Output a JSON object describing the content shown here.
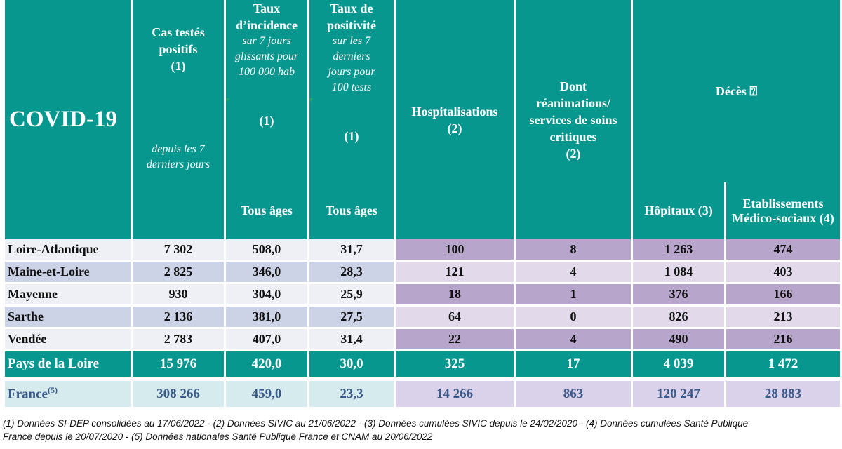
{
  "header": {
    "title": "COVID-19",
    "cas": {
      "label": "Cas testés positifs",
      "ref": "(1)",
      "note": "depuis les 7 derniers jours"
    },
    "incidence": {
      "label": "Taux d’incidence",
      "note": "sur 7 jours glissants pour 100 000 hab",
      "ref": "(1)",
      "sub": "Tous âges"
    },
    "positivite": {
      "label": "Taux de positivité",
      "note": "sur les 7 derniers jours pour 100 tests",
      "ref": "(1)",
      "sub": "Tous âges"
    },
    "hospit": {
      "label": "Hospitalisations",
      "ref": "(2)"
    },
    "rea": {
      "label": "Dont réanimations/ services de soins critiques",
      "ref": "(2)"
    },
    "deces": {
      "label": "Décès ⍰",
      "hopitaux": "Hôpitaux",
      "hopitaux_ref": "(3)",
      "ems": "Etablissements Médico-sociaux",
      "ems_ref": "(4)"
    }
  },
  "rows": [
    {
      "name": "Loire-Atlantique",
      "cas": "7 302",
      "incidence": "508,0",
      "positivite": "31,7",
      "hospit": "100",
      "rea": "8",
      "hop": "1 263",
      "ems": "474"
    },
    {
      "name": "Maine-et-Loire",
      "cas": "2 825",
      "incidence": "346,0",
      "positivite": "28,3",
      "hospit": "121",
      "rea": "4",
      "hop": "1 084",
      "ems": "403"
    },
    {
      "name": "Mayenne",
      "cas": "930",
      "incidence": "304,0",
      "positivite": "25,9",
      "hospit": "18",
      "rea": "1",
      "hop": "376",
      "ems": "166"
    },
    {
      "name": "Sarthe",
      "cas": "2 136",
      "incidence": "381,0",
      "positivite": "27,5",
      "hospit": "64",
      "rea": "0",
      "hop": "826",
      "ems": "213"
    },
    {
      "name": "Vendée",
      "cas": "2 783",
      "incidence": "407,0",
      "positivite": "31,4",
      "hospit": "22",
      "rea": "4",
      "hop": "490",
      "ems": "216"
    }
  ],
  "total": {
    "name": "Pays de la Loire",
    "cas": "15 976",
    "incidence": "420,0",
    "positivite": "30,0",
    "hospit": "325",
    "rea": "17",
    "hop": "4 039",
    "ems": "1 472"
  },
  "france": {
    "name": "France",
    "ref": "(5)",
    "cas": "308 266",
    "incidence": "459,0",
    "positivite": "23,3",
    "hospit": "14 266",
    "rea": "863",
    "hop": "120 247",
    "ems": "28 883"
  },
  "footnote": {
    "line1": "(1) Données SI-DEP consolidées au 17/06/2022 -  (2) Données SIVIC au 21/06/2022 - (3) Données cumulées SIVIC depuis le 24/02/2020 - (4) Données cumulées Santé Publique",
    "line2": "France depuis le 20/07/2020 - (5) Données nationales Santé Publique France et CNAM au 20/06/2022"
  },
  "colors": {
    "teal": "#07978f",
    "purple": "#b7a5cb",
    "lavender": "#e2daea",
    "blue_light": "#cdd3e6"
  }
}
